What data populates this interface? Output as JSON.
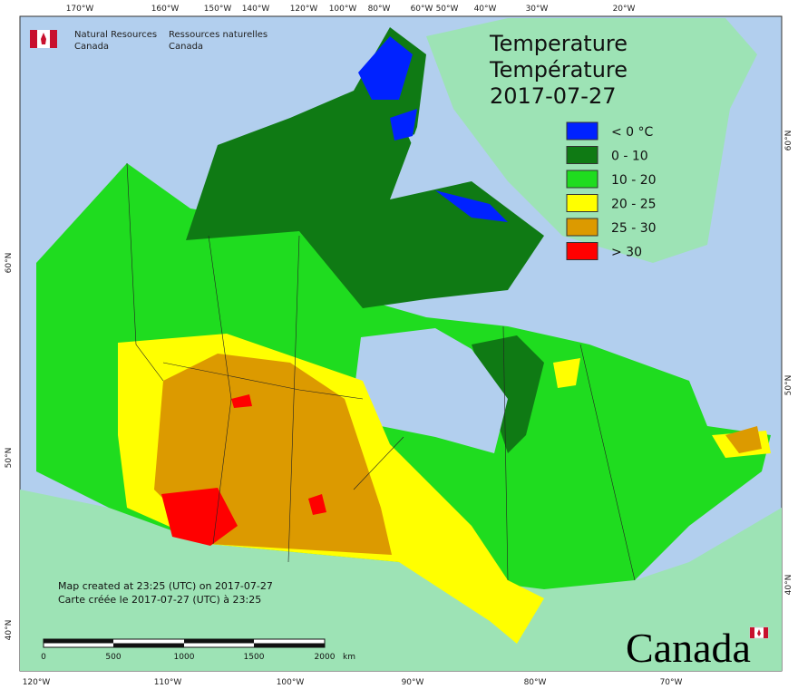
{
  "header": {
    "agency_en": [
      "Natural Resources",
      "Canada"
    ],
    "agency_fr": [
      "Ressources naturelles",
      "Canada"
    ]
  },
  "title": [
    "Temperature",
    "Température",
    "2017-07-27"
  ],
  "legend": {
    "items": [
      {
        "label": "< 0 °C",
        "color": "#0022ff"
      },
      {
        "label": "0 - 10",
        "color": "#0f7a14"
      },
      {
        "label": "10 - 20",
        "color": "#1fdc1f"
      },
      {
        "label": "20 - 25",
        "color": "#ffff00"
      },
      {
        "label": "25 - 30",
        "color": "#dc9a00"
      },
      {
        "label": "> 30",
        "color": "#ff0000"
      }
    ]
  },
  "graticule": {
    "top": [
      "170°W",
      "160°W",
      "150°W",
      "140°W",
      "120°W",
      "100°W",
      "80°W",
      "60°W",
      "50°W",
      "40°W",
      "30°W",
      "20°W"
    ],
    "bottom": [
      "120°W",
      "110°W",
      "100°W",
      "90°W",
      "80°W",
      "70°W"
    ],
    "left": [
      "60°N",
      "50°N",
      "40°N"
    ],
    "right": [
      "60°N",
      "50°N",
      "40°N"
    ]
  },
  "footnote": [
    "Map created at 23:25 (UTC) on 2017-07-27",
    "Carte créée le 2017-07-27 (UTC) à 23:25"
  ],
  "scale_bar": {
    "labels": [
      "0",
      "500",
      "1000",
      "1500",
      "2000"
    ],
    "unit": "km"
  },
  "wordmark": "Canada"
}
